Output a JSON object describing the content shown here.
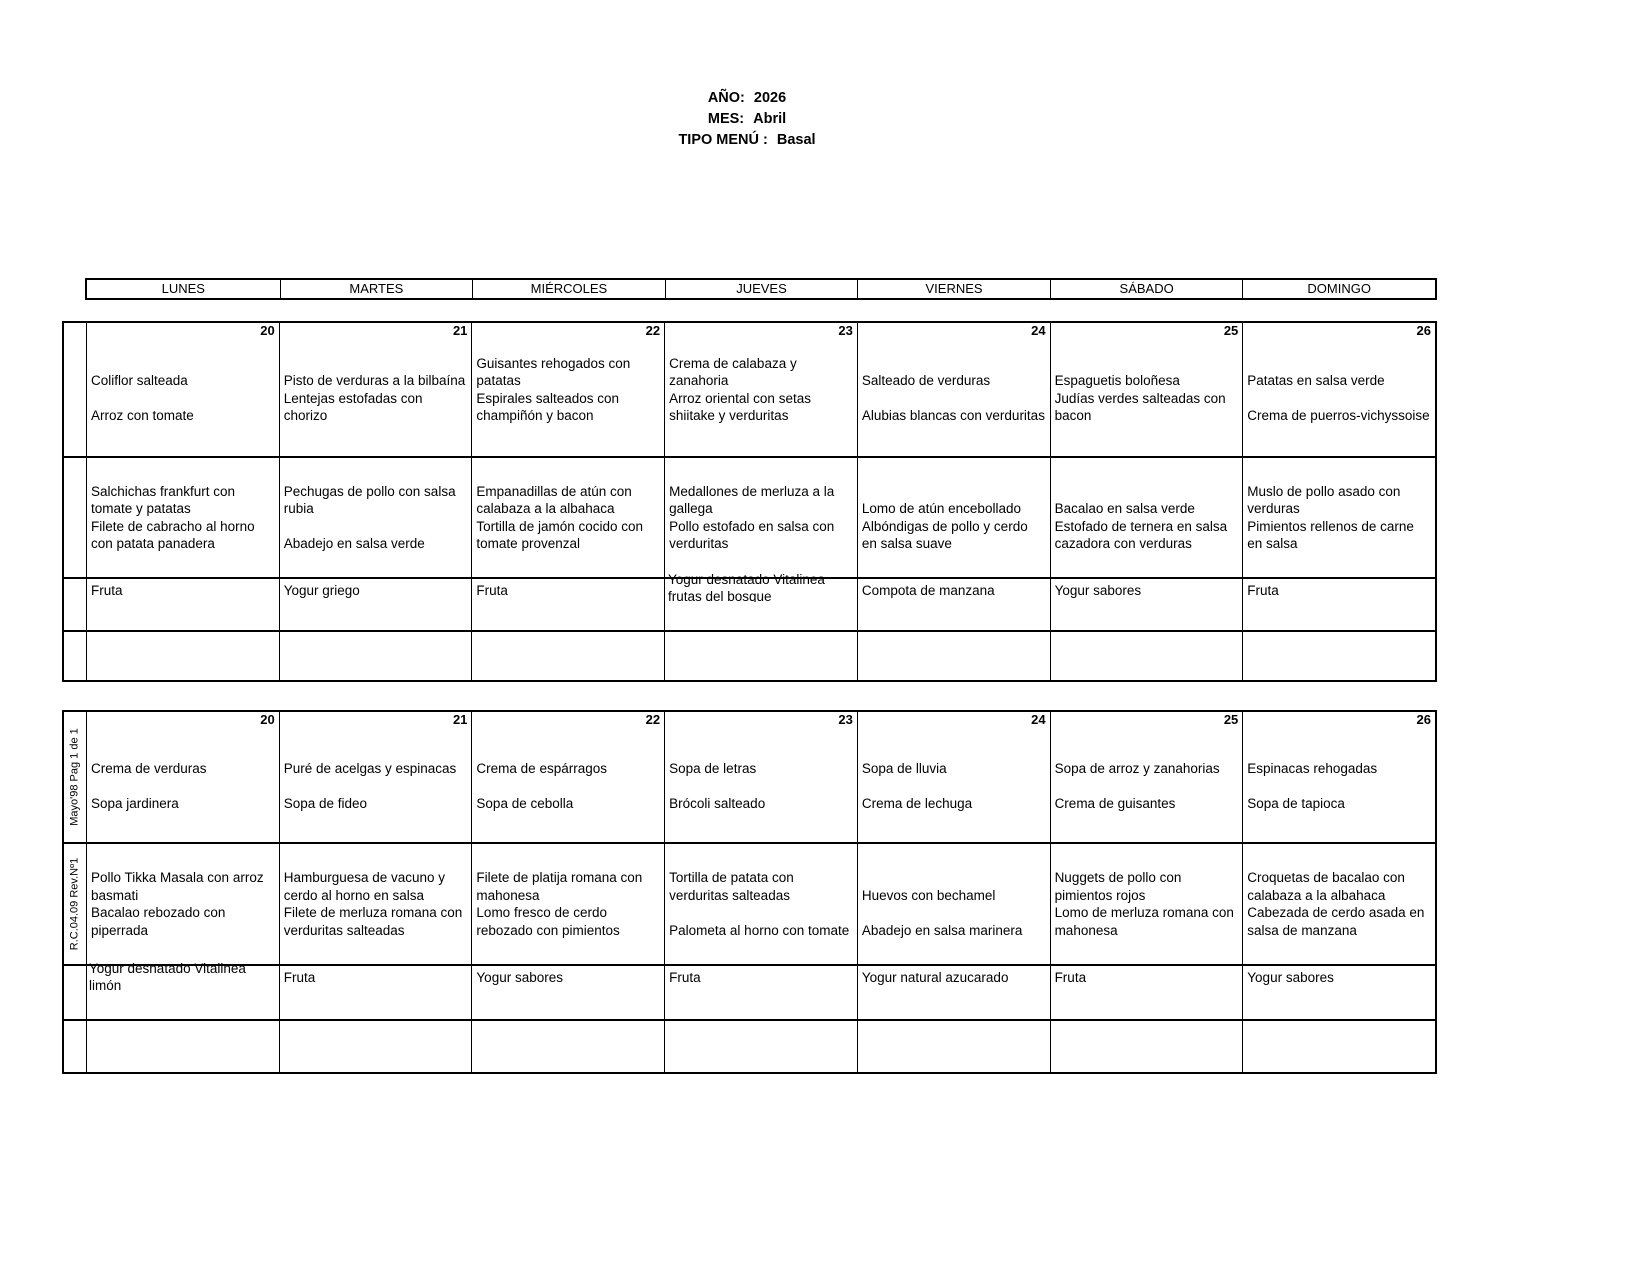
{
  "header": {
    "year_label": "AÑO:",
    "year_value": "2026",
    "month_label": "MES:",
    "month_value": "Abril",
    "menu_type_label": "TIPO MENÚ :",
    "menu_type_value": "Basal"
  },
  "days": [
    "LUNES",
    "MARTES",
    "MIÉRCOLES",
    "JUEVES",
    "VIERNES",
    "SÁBADO",
    "DOMINGO"
  ],
  "dates": [
    "20",
    "21",
    "22",
    "23",
    "24",
    "25",
    "26"
  ],
  "side_labels": {
    "page_ref": "Mayo'98 Pag 1 de 1",
    "doc_ref": "R.C.04.09 Rev.Nº1"
  },
  "lunch": {
    "first_courses": [
      [
        "Coliflor salteada",
        "Arroz con tomate"
      ],
      [
        "Pisto de verduras a la bilbaína",
        "Lentejas estofadas con chorizo"
      ],
      [
        "Guisantes rehogados con patatas",
        "Espirales salteados con champiñón y bacon"
      ],
      [
        "Crema de calabaza y zanahoria",
        "Arroz oriental con setas shiitake y verduritas"
      ],
      [
        "Salteado de verduras",
        "Alubias blancas con verduritas"
      ],
      [
        "Espaguetis boloñesa",
        "Judías verdes salteadas con bacon"
      ],
      [
        "Patatas en salsa verde",
        "Crema de puerros-vichyssoise"
      ]
    ],
    "main_courses": [
      [
        "Salchichas frankfurt con tomate y patatas",
        "Filete de cabracho al horno con patata panadera"
      ],
      [
        "Pechugas de pollo con salsa rubia",
        "Abadejo en salsa verde"
      ],
      [
        "Empanadillas de atún con calabaza a la albahaca",
        "Tortilla de jamón cocido con tomate provenzal"
      ],
      [
        "Medallones de merluza a la gallega",
        "Pollo estofado en salsa con verduritas"
      ],
      [
        "Lomo de atún encebollado",
        "Albóndigas de pollo y cerdo en salsa suave"
      ],
      [
        "Bacalao en salsa verde",
        "Estofado de ternera en salsa cazadora con verduras"
      ],
      [
        "Muslo de pollo asado con verduras",
        "Pimientos rellenos de carne en salsa"
      ]
    ],
    "desserts": [
      "Fruta",
      "Yogur griego",
      "Fruta",
      "Yogur desnatado Vitalinea frutas del bosque",
      "Compota de manzana",
      "Yogur sabores",
      "Fruta"
    ]
  },
  "dinner": {
    "first_courses": [
      [
        "Crema de verduras",
        "Sopa jardinera"
      ],
      [
        "Puré de acelgas y espinacas",
        "Sopa de fideo"
      ],
      [
        "Crema de espárragos",
        "Sopa de cebolla"
      ],
      [
        "Sopa de letras",
        "Brócoli salteado"
      ],
      [
        "Sopa de lluvia",
        "Crema de lechuga"
      ],
      [
        "Sopa de arroz y zanahorias",
        "Crema de guisantes"
      ],
      [
        "Espinacas rehogadas",
        "Sopa de tapioca"
      ]
    ],
    "main_courses": [
      [
        "Pollo Tikka Masala con arroz basmati",
        "Bacalao rebozado con piperrada"
      ],
      [
        "Hamburguesa de vacuno y cerdo al horno en salsa",
        "Filete de merluza romana con verduritas salteadas"
      ],
      [
        "Filete de platija romana con mahonesa",
        "Lomo fresco de cerdo rebozado con pimientos"
      ],
      [
        "Tortilla de patata con verduritas salteadas",
        "Palometa al horno con tomate"
      ],
      [
        "Huevos con bechamel",
        "Abadejo en salsa marinera"
      ],
      [
        "Nuggets de pollo con pimientos rojos",
        "Lomo de merluza romana con mahonesa"
      ],
      [
        "Croquetas de bacalao con calabaza a la albahaca",
        "Cabezada de cerdo asada en salsa de manzana"
      ]
    ],
    "desserts": [
      "Yogur desnatado Vitalinea limón",
      "Fruta",
      "Yogur sabores",
      "Fruta",
      "Yogur natural azucarado",
      "Fruta",
      "Yogur sabores"
    ]
  }
}
